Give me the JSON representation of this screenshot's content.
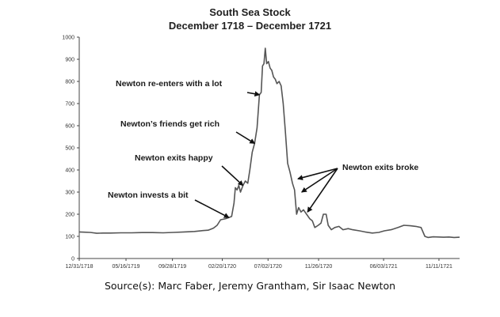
{
  "chart_data": {
    "type": "line",
    "title": "South Sea Stock",
    "subtitle": "December 1718 – December 1721",
    "xlabel": "",
    "ylabel": "",
    "ylim": [
      0,
      1000
    ],
    "yticks": [
      0,
      100,
      200,
      300,
      400,
      500,
      600,
      700,
      800,
      900,
      1000
    ],
    "xlim": [
      "1718-12-31",
      "1722-01-10"
    ],
    "xticks": [
      {
        "label": "12/31/1718",
        "date": "1718-12-31"
      },
      {
        "label": "05/16/1719",
        "date": "1719-05-16"
      },
      {
        "label": "09/28/1719",
        "date": "1719-09-28"
      },
      {
        "label": "02/20/1720",
        "date": "1720-02-20"
      },
      {
        "label": "07/02/1720",
        "date": "1720-07-02"
      },
      {
        "label": "11/26/1720",
        "date": "1720-11-26"
      },
      {
        "label": "06/03/1721",
        "date": "1721-06-03"
      },
      {
        "label": "11/11/1721",
        "date": "1721-11-11"
      }
    ],
    "grid": false,
    "series": [
      {
        "name": "",
        "color": "#555555",
        "points": [
          [
            "1718-12-31",
            120
          ],
          [
            "1719-01-15",
            119
          ],
          [
            "1719-02-01",
            118
          ],
          [
            "1719-02-20",
            114
          ],
          [
            "1719-03-10",
            115
          ],
          [
            "1719-04-01",
            115
          ],
          [
            "1719-05-01",
            116
          ],
          [
            "1719-06-01",
            116
          ],
          [
            "1719-07-01",
            117
          ],
          [
            "1719-08-01",
            117
          ],
          [
            "1719-09-01",
            116
          ],
          [
            "1719-10-01",
            118
          ],
          [
            "1719-11-01",
            120
          ],
          [
            "1719-12-01",
            122
          ],
          [
            "1719-12-25",
            126
          ],
          [
            "1720-01-10",
            128
          ],
          [
            "1720-01-25",
            137
          ],
          [
            "1720-02-05",
            150
          ],
          [
            "1720-02-15",
            175
          ],
          [
            "1720-03-01",
            180
          ],
          [
            "1720-03-10",
            185
          ],
          [
            "1720-03-18",
            190
          ],
          [
            "1720-03-25",
            250
          ],
          [
            "1720-03-29",
            320
          ],
          [
            "1720-04-03",
            310
          ],
          [
            "1720-04-08",
            330
          ],
          [
            "1720-04-13",
            300
          ],
          [
            "1720-04-20",
            330
          ],
          [
            "1720-04-27",
            350
          ],
          [
            "1720-05-04",
            340
          ],
          [
            "1720-05-10",
            400
          ],
          [
            "1720-05-17",
            480
          ],
          [
            "1720-05-24",
            520
          ],
          [
            "1720-05-31",
            590
          ],
          [
            "1720-06-07",
            740
          ],
          [
            "1720-06-12",
            750
          ],
          [
            "1720-06-16",
            870
          ],
          [
            "1720-06-20",
            880
          ],
          [
            "1720-06-24",
            950
          ],
          [
            "1720-06-28",
            880
          ],
          [
            "1720-07-03",
            890
          ],
          [
            "1720-07-08",
            860
          ],
          [
            "1720-07-13",
            850
          ],
          [
            "1720-07-18",
            820
          ],
          [
            "1720-07-23",
            810
          ],
          [
            "1720-07-28",
            790
          ],
          [
            "1720-08-03",
            800
          ],
          [
            "1720-08-09",
            780
          ],
          [
            "1720-08-15",
            700
          ],
          [
            "1720-08-21",
            580
          ],
          [
            "1720-08-28",
            430
          ],
          [
            "1720-09-04",
            390
          ],
          [
            "1720-09-11",
            340
          ],
          [
            "1720-09-17",
            310
          ],
          [
            "1720-09-23",
            200
          ],
          [
            "1720-09-29",
            230
          ],
          [
            "1720-10-06",
            210
          ],
          [
            "1720-10-13",
            220
          ],
          [
            "1720-10-22",
            200
          ],
          [
            "1720-10-31",
            180
          ],
          [
            "1720-11-08",
            170
          ],
          [
            "1720-11-15",
            140
          ],
          [
            "1720-11-25",
            150
          ],
          [
            "1720-12-03",
            160
          ],
          [
            "1720-12-10",
            200
          ],
          [
            "1720-12-18",
            200
          ],
          [
            "1720-12-24",
            150
          ],
          [
            "1721-01-02",
            130
          ],
          [
            "1721-01-12",
            140
          ],
          [
            "1721-01-24",
            145
          ],
          [
            "1721-02-05",
            130
          ],
          [
            "1721-02-20",
            135
          ],
          [
            "1721-03-05",
            130
          ],
          [
            "1721-03-25",
            125
          ],
          [
            "1721-04-10",
            120
          ],
          [
            "1721-05-01",
            115
          ],
          [
            "1721-05-20",
            118
          ],
          [
            "1721-06-05",
            125
          ],
          [
            "1721-06-25",
            130
          ],
          [
            "1721-07-15",
            140
          ],
          [
            "1721-08-01",
            150
          ],
          [
            "1721-08-20",
            148
          ],
          [
            "1721-09-05",
            145
          ],
          [
            "1721-09-20",
            140
          ],
          [
            "1721-10-01",
            100
          ],
          [
            "1721-10-10",
            95
          ],
          [
            "1721-10-25",
            98
          ],
          [
            "1721-11-10",
            97
          ],
          [
            "1721-11-25",
            96
          ],
          [
            "1721-12-10",
            97
          ],
          [
            "1721-12-25",
            95
          ],
          [
            "1722-01-10",
            96
          ]
        ]
      }
    ],
    "annotations": [
      {
        "text": "Newton invests a bit",
        "arrows_to": [
          [
            "1720-03-10",
            185
          ]
        ]
      },
      {
        "text": "Newton exits happy",
        "arrows_to": [
          [
            "1720-04-20",
            330
          ]
        ]
      },
      {
        "text": "Newton’s friends get rich",
        "arrows_to": [
          [
            "1720-05-24",
            520
          ]
        ]
      },
      {
        "text": "Newton re-enters with a lot",
        "arrows_to": [
          [
            "1720-06-07",
            740
          ]
        ]
      },
      {
        "text": "Newton exits broke",
        "arrows_to": [
          [
            "1720-09-27",
            360
          ],
          [
            "1720-10-08",
            300
          ],
          [
            "1720-10-25",
            210
          ]
        ]
      }
    ]
  },
  "source_caption": "Source(s): Marc Faber, Jeremy Grantham, Sir Isaac Newton"
}
